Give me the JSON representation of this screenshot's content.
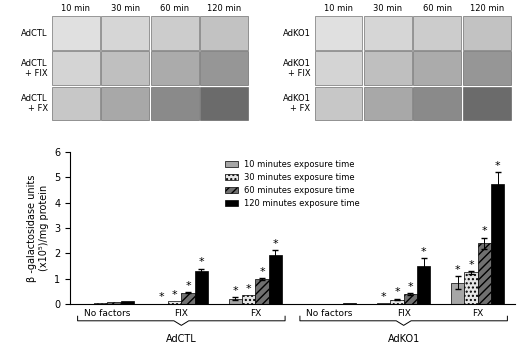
{
  "micrographs": {
    "time_labels": [
      "10 min",
      "30 min",
      "60 min",
      "120 min"
    ],
    "panels": [
      {
        "rows": [
          "AdCTL",
          "AdCTL\n+ FIX",
          "AdCTL\n+ FX"
        ]
      },
      {
        "rows": [
          "AdKO1",
          "AdKO1\n+ FIX",
          "AdKO1\n+ FX"
        ]
      }
    ]
  },
  "chart_data": {
    "type": "bar",
    "y_label": "β -galactosidase units\n(x10⁵)/mg protein",
    "categories": [
      "No factors",
      "FIX",
      "FX",
      "No factors",
      "FIX",
      "FX"
    ],
    "groups": [
      "AdCTL",
      "AdKO1"
    ],
    "ylim": [
      0,
      6
    ],
    "yticks": [
      0,
      1,
      2,
      3,
      4,
      5,
      6
    ],
    "legend": "upper center",
    "significance_label": "*",
    "series": [
      {
        "name": "10 minutes exposure time",
        "color": "#a6a6a6",
        "values": [
          0.01,
          0.02,
          0.22,
          0.0,
          0.05,
          0.85
        ],
        "errors": [
          null,
          null,
          0.04,
          null,
          null,
          0.25
        ],
        "significant": [
          false,
          true,
          true,
          false,
          true,
          true
        ]
      },
      {
        "name": "30 minutes exposure time",
        "color": "#e6e6e6",
        "values": [
          0.03,
          0.12,
          0.35,
          0.01,
          0.18,
          1.25
        ],
        "errors": [
          null,
          null,
          null,
          null,
          0.03,
          0.05
        ],
        "significant": [
          false,
          true,
          true,
          false,
          true,
          true
        ]
      },
      {
        "name": "60 minutes exposure time",
        "color": "#707070",
        "values": [
          0.07,
          0.45,
          1.0,
          0.02,
          0.38,
          2.4
        ],
        "errors": [
          null,
          0.03,
          0.03,
          null,
          0.04,
          0.22
        ],
        "significant": [
          false,
          true,
          true,
          false,
          true,
          true
        ]
      },
      {
        "name": "120 minutes exposure time",
        "color": "#000000",
        "values": [
          0.12,
          1.3,
          1.95,
          0.03,
          1.5,
          4.75
        ],
        "errors": [
          null,
          0.1,
          0.17,
          null,
          0.3,
          0.45
        ],
        "significant": [
          false,
          true,
          true,
          false,
          true,
          true
        ]
      }
    ]
  }
}
